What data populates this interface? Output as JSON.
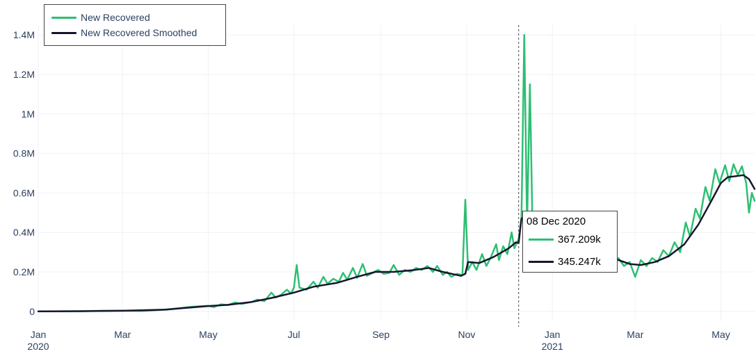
{
  "chart_data": {
    "type": "line",
    "title": "",
    "xlabel": "",
    "ylabel": "",
    "xlim": [
      "2020-01-01",
      "2021-05-25"
    ],
    "ylim": [
      -50000,
      1450000
    ],
    "grid": true,
    "legend_placement": "top-left",
    "y_ticks": [
      {
        "value": 0,
        "label": "0"
      },
      {
        "value": 200000,
        "label": "0.2M"
      },
      {
        "value": 400000,
        "label": "0.4M"
      },
      {
        "value": 600000,
        "label": "0.6M"
      },
      {
        "value": 800000,
        "label": "0.8M"
      },
      {
        "value": 1000000,
        "label": "1M"
      },
      {
        "value": 1200000,
        "label": "1.2M"
      },
      {
        "value": 1400000,
        "label": "1.4M"
      }
    ],
    "x_ticks": [
      {
        "date": "2020-01-01",
        "label": "Jan",
        "sublabel": "2020"
      },
      {
        "date": "2020-03-01",
        "label": "Mar",
        "sublabel": ""
      },
      {
        "date": "2020-05-01",
        "label": "May",
        "sublabel": ""
      },
      {
        "date": "2020-07-01",
        "label": "Jul",
        "sublabel": ""
      },
      {
        "date": "2020-09-01",
        "label": "Sep",
        "sublabel": ""
      },
      {
        "date": "2020-11-01",
        "label": "Nov",
        "sublabel": ""
      },
      {
        "date": "2021-01-01",
        "label": "Jan",
        "sublabel": "2021"
      },
      {
        "date": "2021-03-01",
        "label": "Mar",
        "sublabel": ""
      },
      {
        "date": "2021-05-01",
        "label": "May",
        "sublabel": ""
      }
    ],
    "hover_date": "2020-12-08",
    "series": [
      {
        "name": "New Recovered",
        "color": "#2dbf72",
        "points": [
          [
            "2020-01-01",
            0
          ],
          [
            "2020-01-15",
            0
          ],
          [
            "2020-02-01",
            1000
          ],
          [
            "2020-02-15",
            3000
          ],
          [
            "2020-03-01",
            4000
          ],
          [
            "2020-03-15",
            2000
          ],
          [
            "2020-03-25",
            6000
          ],
          [
            "2020-04-01",
            10000
          ],
          [
            "2020-04-10",
            16000
          ],
          [
            "2020-04-20",
            24000
          ],
          [
            "2020-05-01",
            28000
          ],
          [
            "2020-05-05",
            22000
          ],
          [
            "2020-05-10",
            36000
          ],
          [
            "2020-05-15",
            32000
          ],
          [
            "2020-05-20",
            45000
          ],
          [
            "2020-05-25",
            38000
          ],
          [
            "2020-06-01",
            48000
          ],
          [
            "2020-06-05",
            60000
          ],
          [
            "2020-06-10",
            52000
          ],
          [
            "2020-06-15",
            95000
          ],
          [
            "2020-06-18",
            70000
          ],
          [
            "2020-06-22",
            85000
          ],
          [
            "2020-06-26",
            110000
          ],
          [
            "2020-06-29",
            90000
          ],
          [
            "2020-07-01",
            120000
          ],
          [
            "2020-07-03",
            235000
          ],
          [
            "2020-07-05",
            120000
          ],
          [
            "2020-07-10",
            110000
          ],
          [
            "2020-07-15",
            150000
          ],
          [
            "2020-07-18",
            120000
          ],
          [
            "2020-07-22",
            175000
          ],
          [
            "2020-07-25",
            140000
          ],
          [
            "2020-07-29",
            165000
          ],
          [
            "2020-08-02",
            150000
          ],
          [
            "2020-08-05",
            195000
          ],
          [
            "2020-08-08",
            160000
          ],
          [
            "2020-08-12",
            220000
          ],
          [
            "2020-08-15",
            170000
          ],
          [
            "2020-08-19",
            240000
          ],
          [
            "2020-08-22",
            180000
          ],
          [
            "2020-08-26",
            195000
          ],
          [
            "2020-08-30",
            210000
          ],
          [
            "2020-09-03",
            190000
          ],
          [
            "2020-09-07",
            195000
          ],
          [
            "2020-09-10",
            235000
          ],
          [
            "2020-09-14",
            185000
          ],
          [
            "2020-09-18",
            210000
          ],
          [
            "2020-09-22",
            200000
          ],
          [
            "2020-09-26",
            220000
          ],
          [
            "2020-09-30",
            210000
          ],
          [
            "2020-10-04",
            230000
          ],
          [
            "2020-10-08",
            200000
          ],
          [
            "2020-10-11",
            230000
          ],
          [
            "2020-10-15",
            185000
          ],
          [
            "2020-10-18",
            200000
          ],
          [
            "2020-10-21",
            175000
          ],
          [
            "2020-10-25",
            190000
          ],
          [
            "2020-10-29",
            185000
          ],
          [
            "2020-10-31",
            565000
          ],
          [
            "2020-11-02",
            210000
          ],
          [
            "2020-11-05",
            250000
          ],
          [
            "2020-11-08",
            210000
          ],
          [
            "2020-11-12",
            290000
          ],
          [
            "2020-11-15",
            230000
          ],
          [
            "2020-11-18",
            270000
          ],
          [
            "2020-11-22",
            340000
          ],
          [
            "2020-11-24",
            260000
          ],
          [
            "2020-11-27",
            330000
          ],
          [
            "2020-11-30",
            290000
          ],
          [
            "2020-12-03",
            400000
          ],
          [
            "2020-12-05",
            320000
          ],
          [
            "2020-12-08",
            367209
          ],
          [
            "2020-12-10",
            460000
          ],
          [
            "2020-12-12",
            1400000
          ],
          [
            "2020-12-14",
            430000
          ],
          [
            "2020-12-16",
            1150000
          ],
          [
            "2020-12-18",
            380000
          ],
          [
            "2020-12-22",
            340000
          ],
          [
            "2020-12-26",
            380000
          ],
          [
            "2020-12-30",
            300000
          ],
          [
            "2021-01-04",
            400000
          ],
          [
            "2021-01-08",
            320000
          ],
          [
            "2021-01-12",
            370000
          ],
          [
            "2021-01-16",
            310000
          ],
          [
            "2021-01-20",
            350000
          ],
          [
            "2021-01-24",
            290000
          ],
          [
            "2021-01-28",
            320000
          ],
          [
            "2021-02-01",
            290000
          ],
          [
            "2021-02-05",
            270000
          ],
          [
            "2021-02-09",
            300000
          ],
          [
            "2021-02-13",
            240000
          ],
          [
            "2021-02-17",
            270000
          ],
          [
            "2021-02-21",
            230000
          ],
          [
            "2021-02-25",
            250000
          ],
          [
            "2021-03-01",
            175000
          ],
          [
            "2021-03-05",
            260000
          ],
          [
            "2021-03-09",
            230000
          ],
          [
            "2021-03-13",
            270000
          ],
          [
            "2021-03-17",
            250000
          ],
          [
            "2021-03-21",
            310000
          ],
          [
            "2021-03-25",
            280000
          ],
          [
            "2021-03-29",
            350000
          ],
          [
            "2021-04-02",
            300000
          ],
          [
            "2021-04-06",
            450000
          ],
          [
            "2021-04-09",
            380000
          ],
          [
            "2021-04-13",
            520000
          ],
          [
            "2021-04-16",
            470000
          ],
          [
            "2021-04-20",
            630000
          ],
          [
            "2021-04-23",
            560000
          ],
          [
            "2021-04-27",
            720000
          ],
          [
            "2021-04-30",
            650000
          ],
          [
            "2021-05-04",
            740000
          ],
          [
            "2021-05-07",
            660000
          ],
          [
            "2021-05-10",
            745000
          ],
          [
            "2021-05-13",
            690000
          ],
          [
            "2021-05-16",
            735000
          ],
          [
            "2021-05-19",
            650000
          ],
          [
            "2021-05-21",
            500000
          ],
          [
            "2021-05-23",
            600000
          ],
          [
            "2021-05-25",
            560000
          ]
        ]
      },
      {
        "name": "New Recovered Smoothed",
        "color": "#17152e",
        "points": [
          [
            "2020-01-01",
            0
          ],
          [
            "2020-02-01",
            1000
          ],
          [
            "2020-03-01",
            3000
          ],
          [
            "2020-04-01",
            9000
          ],
          [
            "2020-04-15",
            18000
          ],
          [
            "2020-05-01",
            27000
          ],
          [
            "2020-05-15",
            33000
          ],
          [
            "2020-06-01",
            48000
          ],
          [
            "2020-06-15",
            68000
          ],
          [
            "2020-07-01",
            95000
          ],
          [
            "2020-07-15",
            125000
          ],
          [
            "2020-08-01",
            145000
          ],
          [
            "2020-08-15",
            175000
          ],
          [
            "2020-08-28",
            200000
          ],
          [
            "2020-09-10",
            200000
          ],
          [
            "2020-09-25",
            210000
          ],
          [
            "2020-10-05",
            220000
          ],
          [
            "2020-10-15",
            200000
          ],
          [
            "2020-10-28",
            180000
          ],
          [
            "2020-10-31",
            190000
          ],
          [
            "2020-11-02",
            250000
          ],
          [
            "2020-11-10",
            245000
          ],
          [
            "2020-11-20",
            275000
          ],
          [
            "2020-12-01",
            320000
          ],
          [
            "2020-12-06",
            350000
          ],
          [
            "2020-12-08",
            345247
          ],
          [
            "2020-12-10",
            470000
          ],
          [
            "2020-12-15",
            480000
          ],
          [
            "2020-12-20",
            400000
          ],
          [
            "2020-12-28",
            360000
          ],
          [
            "2021-01-05",
            350000
          ],
          [
            "2021-01-15",
            340000
          ],
          [
            "2021-01-25",
            330000
          ],
          [
            "2021-02-05",
            290000
          ],
          [
            "2021-02-15",
            265000
          ],
          [
            "2021-02-25",
            240000
          ],
          [
            "2021-03-05",
            235000
          ],
          [
            "2021-03-15",
            250000
          ],
          [
            "2021-03-25",
            280000
          ],
          [
            "2021-04-05",
            340000
          ],
          [
            "2021-04-15",
            440000
          ],
          [
            "2021-04-25",
            570000
          ],
          [
            "2021-05-01",
            650000
          ],
          [
            "2021-05-06",
            680000
          ],
          [
            "2021-05-12",
            685000
          ],
          [
            "2021-05-17",
            690000
          ],
          [
            "2021-05-21",
            670000
          ],
          [
            "2021-05-25",
            620000
          ]
        ]
      }
    ]
  },
  "legend": {
    "items": [
      {
        "label": "New Recovered",
        "color": "#2dbf72"
      },
      {
        "label": "New Recovered Smoothed",
        "color": "#17152e"
      }
    ]
  },
  "tooltip": {
    "date": "08 Dec 2020",
    "rows": [
      {
        "value": "367.209k",
        "color": "#2dbf72"
      },
      {
        "value": "345.247k",
        "color": "#17152e"
      }
    ]
  }
}
